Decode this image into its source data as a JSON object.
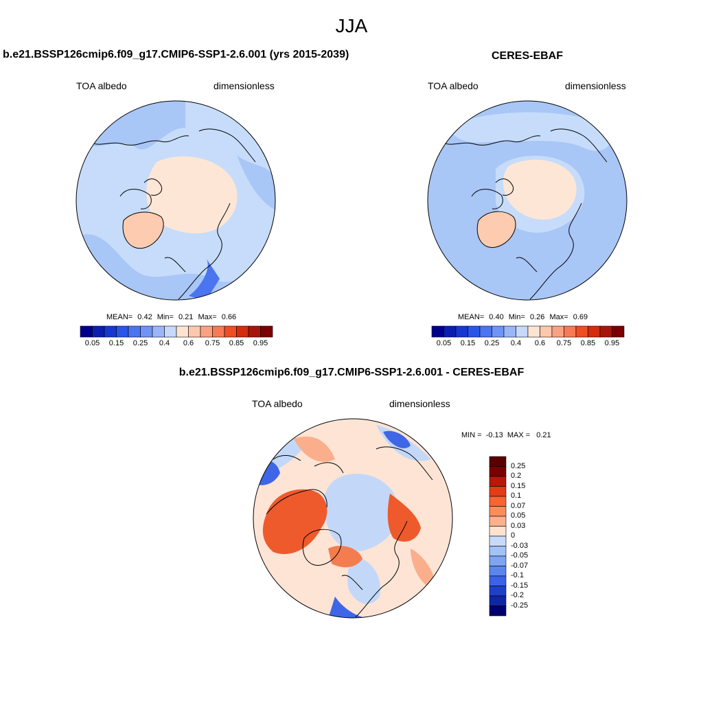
{
  "figure": {
    "title": "JJA"
  },
  "panels": {
    "model": {
      "title": "b.e21.BSSP126cmip6.f09_g17.CMIP6-SSP1-2.6.001 (yrs 2015-2039)",
      "left_label": "TOA albedo",
      "right_label": "dimensionless",
      "stats": {
        "mean_label": "MEAN=",
        "mean": "0.42",
        "min_label": "Min=",
        "min": "0.21",
        "max_label": "Max=",
        "max": "0.66"
      }
    },
    "obs": {
      "title": "CERES-EBAF",
      "left_label": "TOA albedo",
      "right_label": "dimensionless",
      "stats": {
        "mean_label": "MEAN=",
        "mean": "0.40",
        "min_label": "Min=",
        "min": "0.26",
        "max_label": "Max=",
        "max": "0.69"
      }
    },
    "diff": {
      "title": "b.e21.BSSP126cmip6.f09_g17.CMIP6-SSP1-2.6.001 - CERES-EBAF",
      "left_label": "TOA albedo",
      "right_label": "dimensionless",
      "stats": {
        "min_label": "MIN =",
        "min": "-0.13",
        "max_label": "MAX =",
        "max": "0.21"
      }
    }
  },
  "colorbars": {
    "abs": {
      "colors": [
        "#00008b",
        "#0a1fb0",
        "#1638d0",
        "#2a55e8",
        "#4a74f0",
        "#7094f6",
        "#9bb6f8",
        "#c6d9fa",
        "#fde4d2",
        "#fcc8ad",
        "#f9a282",
        "#f77a55",
        "#ef4d23",
        "#d42c0d",
        "#a61608",
        "#7a0000"
      ],
      "tick_labels": [
        "0.05",
        "0.15",
        "0.25",
        "0.4",
        "0.6",
        "0.75",
        "0.85",
        "0.95"
      ]
    },
    "diff": {
      "colors": [
        "#7a0000",
        "#b31a08",
        "#e33d16",
        "#f76533",
        "#fb8d5c",
        "#fcb08b",
        "#fde2cf",
        "#c7dbf8",
        "#a3c2f7",
        "#7fa4f2",
        "#5a86ee",
        "#3a63e6",
        "#1e40c8",
        "#0f26a5",
        "#020a80"
      ],
      "tick_labels": [
        "0.25",
        "0.2",
        "0.15",
        "0.1",
        "0.07",
        "0.05",
        "0.03",
        "0",
        "-0.03",
        "-0.05",
        "-0.07",
        "-0.1",
        "-0.15",
        "-0.2",
        "-0.25"
      ]
    }
  },
  "maps": {
    "colors": {
      "ocean_light": "#c6dcfa",
      "ocean_mid": "#a8c6f6",
      "ice": "#fde6d6",
      "greenland": "#fccbb0",
      "diff_neutral": "#fde4d5",
      "diff_pos": "#fbae8b",
      "diff_strong": "#ef5a2c",
      "diff_neg": "#c3d8f8",
      "diff_neg_strong": "#3f66e6"
    }
  }
}
